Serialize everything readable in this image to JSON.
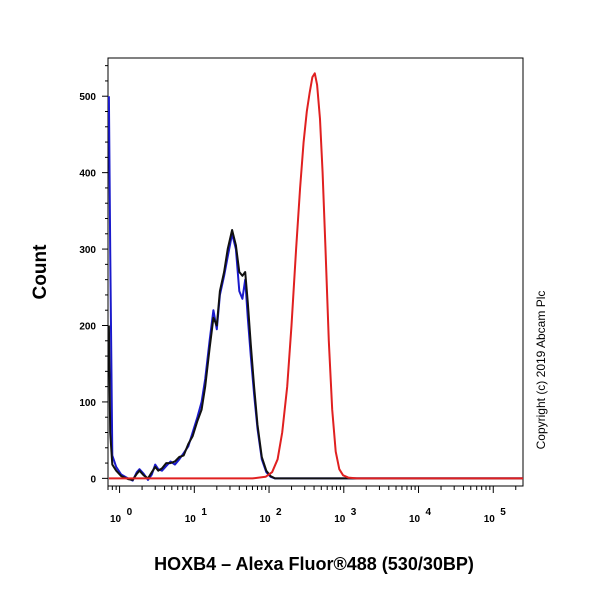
{
  "chart_data": {
    "type": "line",
    "title": "",
    "xlabel": "HOXB4 – Alexa Fluor®488 (530/30BP)",
    "ylabel": "Count",
    "x_scale": "log",
    "xlim": [
      0.7,
      250000
    ],
    "ylim": [
      -10,
      550
    ],
    "y_ticks": [
      0,
      100,
      200,
      300,
      400,
      500
    ],
    "y_tick_labels": [
      "0",
      "100",
      "200",
      "300",
      "400",
      "500"
    ],
    "x_ticks": [
      1,
      10,
      100,
      1000,
      10000,
      100000
    ],
    "x_tick_bases": [
      "10",
      "10",
      "10",
      "10",
      "10",
      "10"
    ],
    "x_tick_exponents": [
      "0",
      "1",
      "2",
      "3",
      "4",
      "5"
    ],
    "grid": false,
    "legend": "none",
    "annotation": "Copyright (c) 2019 Abcam Plc",
    "series": [
      {
        "color": "#1a1acc",
        "x": [
          0.72,
          0.75,
          0.8,
          0.9,
          1.05,
          1.3,
          1.5,
          1.7,
          1.85,
          2.1,
          2.4,
          2.7,
          3.0,
          3.3,
          3.7,
          4.2,
          4.8,
          5.5,
          6.3,
          7.2,
          8.3,
          9.5,
          11,
          12.5,
          14,
          16,
          18,
          20,
          22,
          25,
          28,
          32,
          36,
          40,
          44,
          48,
          52,
          57,
          63,
          70,
          80,
          92,
          105,
          120,
          140,
          170,
          220,
          300,
          500,
          1000,
          10000,
          100000,
          250000
        ],
        "y": [
          500,
          300,
          30,
          15,
          5,
          0,
          -3,
          8,
          12,
          6,
          -2,
          5,
          18,
          12,
          10,
          16,
          22,
          18,
          25,
          33,
          42,
          60,
          80,
          100,
          130,
          180,
          220,
          195,
          240,
          265,
          290,
          320,
          300,
          245,
          235,
          260,
          210,
          160,
          110,
          65,
          25,
          8,
          2,
          0,
          0,
          0,
          0,
          0,
          0,
          0,
          0,
          0,
          0
        ]
      },
      {
        "color": "#111111",
        "x": [
          0.72,
          0.75,
          0.8,
          0.9,
          1.05,
          1.3,
          1.5,
          1.7,
          1.85,
          2.1,
          2.4,
          2.7,
          3.0,
          3.3,
          3.7,
          4.2,
          4.8,
          5.5,
          6.3,
          7.2,
          8.3,
          9.5,
          11,
          12.5,
          14,
          16,
          18,
          20,
          22,
          25,
          28,
          32,
          36,
          40,
          44,
          48,
          52,
          57,
          63,
          70,
          80,
          92,
          105,
          120,
          140,
          170,
          220,
          300,
          500,
          1000,
          10000,
          100000,
          250000
        ],
        "y": [
          200,
          60,
          18,
          10,
          3,
          -1,
          -2,
          6,
          10,
          4,
          0,
          8,
          15,
          10,
          13,
          20,
          20,
          22,
          28,
          30,
          45,
          55,
          75,
          90,
          120,
          170,
          210,
          200,
          245,
          270,
          300,
          325,
          305,
          270,
          265,
          270,
          230,
          175,
          120,
          70,
          28,
          10,
          3,
          0,
          0,
          0,
          0,
          0,
          0,
          0,
          0,
          0,
          0
        ]
      },
      {
        "color": "#e02020",
        "x": [
          0.72,
          10,
          60,
          90,
          110,
          130,
          150,
          175,
          200,
          230,
          260,
          290,
          320,
          350,
          380,
          410,
          440,
          480,
          520,
          570,
          630,
          700,
          780,
          870,
          980,
          1150,
          1500,
          3000,
          10000,
          100000,
          250000
        ],
        "y": [
          0,
          0,
          0,
          2,
          8,
          25,
          60,
          120,
          200,
          300,
          380,
          440,
          480,
          505,
          525,
          530,
          515,
          470,
          400,
          300,
          180,
          90,
          35,
          12,
          4,
          1,
          0,
          0,
          0,
          0,
          0
        ]
      }
    ]
  }
}
